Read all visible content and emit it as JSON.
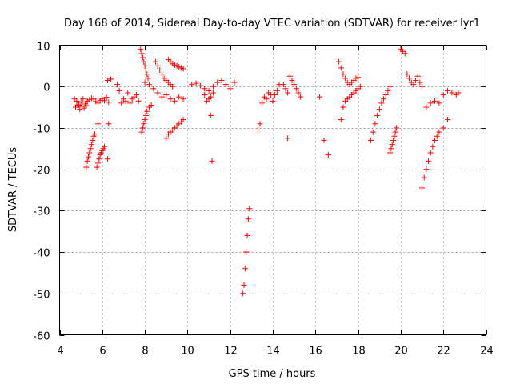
{
  "chart_data": {
    "type": "scatter",
    "title": "Day 168 of 2014, Sidereal Day-to-day VTEC variation (SDTVAR) for receiver lyr1",
    "xlabel": "GPS time / hours",
    "ylabel": "SDTVAR / TECUs",
    "xlim": [
      4,
      24
    ],
    "ylim": [
      -60,
      10
    ],
    "xticks": [
      "4",
      "6",
      "8",
      "10",
      "12",
      "14",
      "16",
      "18",
      "20",
      "22",
      "24"
    ],
    "yticks": [
      "10",
      "0",
      "-10",
      "-20",
      "-30",
      "-40",
      "-50",
      "-60"
    ],
    "grid": true,
    "marker": "plus",
    "color": "#ff0000",
    "series": [
      {
        "name": "seg-01",
        "x": [
          4.7,
          4.8,
          4.9,
          5.0,
          5.1,
          5.2,
          5.3,
          5.4,
          5.5,
          5.6,
          5.7,
          5.8,
          5.9,
          6.0,
          6.1,
          6.2,
          6.3
        ],
        "y": [
          -3.0,
          -3.5,
          -4.5,
          -3.8,
          -3.0,
          -4.2,
          -3.5,
          -3.2,
          -2.8,
          -3.0,
          -3.6,
          -4.0,
          -3.3,
          -3.0,
          -3.4,
          -2.6,
          -3.8
        ]
      },
      {
        "name": "seg-02",
        "x": [
          4.75,
          4.85,
          4.95,
          5.05,
          5.15,
          5.25
        ],
        "y": [
          -5.0,
          -4.4,
          -5.5,
          -4.8,
          -5.2,
          -4.6
        ]
      },
      {
        "name": "seg-03",
        "x": [
          5.25,
          5.3,
          5.35,
          5.4,
          5.45,
          5.5,
          5.55,
          5.6,
          5.65
        ],
        "y": [
          -19.5,
          -18.0,
          -17.0,
          -16.0,
          -15.0,
          -14.0,
          -13.0,
          -12.0,
          -11.5
        ]
      },
      {
        "name": "seg-04",
        "x": [
          5.75,
          5.8,
          5.85,
          5.9,
          5.95,
          6.0,
          6.05,
          6.1
        ],
        "y": [
          -19.5,
          -18.5,
          -17.5,
          -16.5,
          -16.0,
          -15.5,
          -15.0,
          -14.5
        ]
      },
      {
        "name": "seg-05",
        "x": [
          5.8,
          6.25,
          6.3,
          6.25,
          6.4
        ],
        "y": [
          -9.0,
          -17.5,
          -9.0,
          1.5,
          1.8
        ]
      },
      {
        "name": "seg-06",
        "x": [
          6.7,
          6.8,
          6.9,
          7.0,
          7.1,
          7.2,
          7.3,
          7.4,
          7.5,
          7.6,
          7.7
        ],
        "y": [
          0.5,
          -1.0,
          -4.0,
          -3.0,
          -3.5,
          -1.5,
          -4.0,
          -3.0,
          -2.5,
          -2.0,
          -3.5
        ]
      },
      {
        "name": "seg-07",
        "x": [
          7.8,
          7.85,
          7.9,
          7.95,
          8.0,
          8.05,
          8.1,
          8.15
        ],
        "y": [
          9.0,
          8.0,
          7.0,
          6.0,
          5.0,
          4.0,
          3.0,
          2.0
        ]
      },
      {
        "name": "seg-08",
        "x": [
          7.85,
          7.9,
          7.95,
          8.0,
          8.05,
          8.1,
          8.2,
          8.3
        ],
        "y": [
          -11.0,
          -10.0,
          -9.0,
          -8.0,
          -7.0,
          -6.0,
          -5.0,
          -4.5
        ]
      },
      {
        "name": "seg-09",
        "x": [
          8.0,
          8.2,
          8.4,
          8.6,
          8.8,
          9.0,
          9.2,
          9.4,
          9.6,
          9.8
        ],
        "y": [
          1.0,
          0.5,
          -0.5,
          -1.5,
          -2.5,
          -2.0,
          -3.0,
          -3.5,
          -2.5,
          -3.0
        ]
      },
      {
        "name": "seg-10",
        "x": [
          8.5,
          8.6,
          8.7,
          8.8,
          8.9,
          9.0,
          9.1,
          9.2,
          9.3
        ],
        "y": [
          6.0,
          5.0,
          4.0,
          3.0,
          2.0,
          1.5,
          1.0,
          0.5,
          0.0
        ]
      },
      {
        "name": "seg-11",
        "x": [
          9.1,
          9.2,
          9.3,
          9.4,
          9.5,
          9.6,
          9.7,
          9.8
        ],
        "y": [
          6.5,
          6.0,
          5.5,
          5.2,
          5.0,
          4.8,
          4.5,
          4.3
        ]
      },
      {
        "name": "seg-12",
        "x": [
          9.0,
          9.1,
          9.2,
          9.3,
          9.4,
          9.5,
          9.6,
          9.7,
          9.8
        ],
        "y": [
          -12.5,
          -11.5,
          -11.0,
          -10.5,
          -10.0,
          -9.5,
          -9.0,
          -8.5,
          -8.0
        ]
      },
      {
        "name": "seg-13",
        "x": [
          10.2,
          10.4,
          10.6,
          10.8,
          11.0,
          11.2,
          11.4,
          11.6,
          11.8,
          12.0,
          12.2
        ],
        "y": [
          0.5,
          0.8,
          0.2,
          -0.5,
          -1.0,
          0.0,
          1.0,
          1.5,
          0.5,
          -0.5,
          1.0
        ]
      },
      {
        "name": "seg-14",
        "x": [
          10.8,
          10.9,
          11.0,
          11.1,
          11.2,
          11.1,
          11.15
        ],
        "y": [
          -2.0,
          -3.5,
          -3.0,
          -2.5,
          -1.5,
          -7.0,
          -18.0
        ]
      },
      {
        "name": "seg-15",
        "x": [
          12.6,
          12.65,
          12.7,
          12.75,
          12.8,
          12.85,
          12.9
        ],
        "y": [
          -50.0,
          -48.0,
          -44.0,
          -40.0,
          -36.0,
          -32.0,
          -29.5
        ]
      },
      {
        "name": "seg-16",
        "x": [
          13.3,
          13.4,
          13.5,
          13.6,
          13.7,
          13.8,
          13.9,
          14.0,
          14.1,
          14.2,
          14.3
        ],
        "y": [
          -10.5,
          -9.0,
          -4.0,
          -2.5,
          -3.0,
          -1.5,
          -2.0,
          -3.5,
          -2.0,
          -1.0,
          0.5
        ]
      },
      {
        "name": "seg-17",
        "x": [
          14.5,
          14.6,
          14.7,
          14.8,
          14.9,
          15.0,
          15.1,
          15.2,
          15.3
        ],
        "y": [
          0.5,
          -0.5,
          -1.5,
          2.5,
          1.5,
          0.5,
          -0.5,
          -1.5,
          -2.5
        ]
      },
      {
        "name": "seg-18",
        "x": [
          14.7,
          16.2,
          16.4,
          16.6
        ],
        "y": [
          -12.5,
          -2.5,
          -13.0,
          -16.5
        ]
      },
      {
        "name": "seg-19",
        "x": [
          17.1,
          17.2,
          17.3,
          17.4,
          17.5,
          17.6,
          17.7,
          17.8,
          17.9,
          18.0
        ],
        "y": [
          6.0,
          4.5,
          3.0,
          2.0,
          1.0,
          0.5,
          1.0,
          1.5,
          2.0,
          2.2
        ]
      },
      {
        "name": "seg-20",
        "x": [
          17.2,
          17.3,
          17.4,
          17.5,
          17.6,
          17.7,
          17.8,
          17.9,
          18.0,
          18.1
        ],
        "y": [
          -8.0,
          -5.0,
          -3.5,
          -3.0,
          -2.5,
          -2.0,
          -1.5,
          -1.0,
          -0.5,
          0.0
        ]
      },
      {
        "name": "seg-21",
        "x": [
          18.6,
          18.7,
          18.8,
          18.9,
          19.0,
          19.1,
          19.2,
          19.3,
          19.4,
          19.5
        ],
        "y": [
          -13.0,
          -11.0,
          -9.0,
          -7.0,
          -5.5,
          -4.0,
          -3.0,
          -2.0,
          -1.0,
          0.0
        ]
      },
      {
        "name": "seg-22",
        "x": [
          19.5,
          19.55,
          19.6,
          19.65,
          19.7,
          19.75,
          19.8
        ],
        "y": [
          -16.0,
          -15.0,
          -14.0,
          -13.0,
          -12.0,
          -11.0,
          -10.0
        ]
      },
      {
        "name": "seg-23",
        "x": [
          20.0,
          20.1,
          20.2,
          20.3,
          20.4,
          20.5,
          20.6,
          20.7,
          20.8,
          20.9,
          21.0
        ],
        "y": [
          9.0,
          8.5,
          8.0,
          3.0,
          2.0,
          1.0,
          0.5,
          1.5,
          2.5,
          1.0,
          0.0
        ]
      },
      {
        "name": "seg-24",
        "x": [
          21.0,
          21.1,
          21.2,
          21.3,
          21.4,
          21.5,
          21.6,
          21.7,
          21.8,
          22.0,
          22.2
        ],
        "y": [
          -24.5,
          -22.0,
          -20.0,
          -18.0,
          -16.0,
          -14.5,
          -13.0,
          -12.0,
          -11.0,
          -10.0,
          -8.0
        ]
      },
      {
        "name": "seg-25",
        "x": [
          21.2,
          21.4,
          21.6,
          21.8,
          22.0,
          22.2,
          22.4,
          22.6,
          22.7
        ],
        "y": [
          -5.0,
          -4.0,
          -3.5,
          -4.0,
          -2.0,
          -1.0,
          -1.5,
          -2.0,
          -1.5
        ]
      }
    ]
  }
}
